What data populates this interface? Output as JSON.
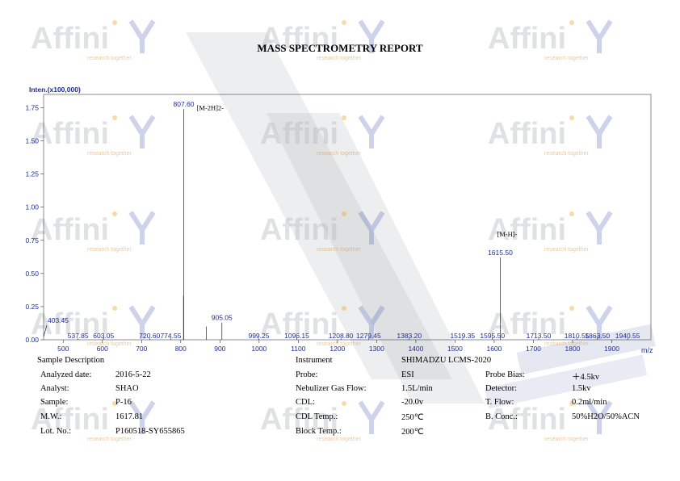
{
  "report_title": "MASS SPECTROMETRY REPORT",
  "watermark": {
    "logo_text": "Affinity",
    "tagline": "research together"
  },
  "chart_data": {
    "type": "bar",
    "ylabel": "Inten.(x100,000)",
    "xlabel": "m/z",
    "xlim": [
      450,
      2000
    ],
    "ylim": [
      0,
      1.85
    ],
    "x_ticks": [
      500,
      600,
      700,
      800,
      900,
      1000,
      1100,
      1200,
      1300,
      1400,
      1500,
      1600,
      1700,
      1800,
      1900
    ],
    "y_ticks": [
      0.0,
      0.25,
      0.5,
      0.75,
      1.0,
      1.25,
      1.5,
      1.75
    ],
    "x_tick_labels": [
      "500",
      "600",
      "700",
      "800",
      "900",
      "1000",
      "1100",
      "1200",
      "1300",
      "1400",
      "1500",
      "1600",
      "1700",
      "1800",
      "1900"
    ],
    "y_tick_labels": [
      "0.00",
      "0.25",
      "0.50",
      "0.75",
      "1.00",
      "1.25",
      "1.50",
      "1.75"
    ],
    "grid": false,
    "peaks": [
      {
        "mz": 403.45,
        "intensity": 0.12,
        "label": "403.45"
      },
      {
        "mz": 537.85,
        "intensity": 0.01,
        "label": "537.85"
      },
      {
        "mz": 603.05,
        "intensity": 0.02,
        "label": "603.05"
      },
      {
        "mz": 720.6,
        "intensity": 0.01,
        "label": "720.60"
      },
      {
        "mz": 774.55,
        "intensity": 0.01,
        "label": "774.55"
      },
      {
        "mz": 807.6,
        "intensity": 1.74,
        "label": "807.60"
      },
      {
        "mz": 807.0,
        "intensity": 0.33,
        "label": ""
      },
      {
        "mz": 865.0,
        "intensity": 0.1,
        "label": ""
      },
      {
        "mz": 905.05,
        "intensity": 0.13,
        "label": "905.05"
      },
      {
        "mz": 999.25,
        "intensity": 0.01,
        "label": "999.25"
      },
      {
        "mz": 1096.15,
        "intensity": 0.02,
        "label": "1096.15"
      },
      {
        "mz": 1208.8,
        "intensity": 0.01,
        "label": "1208.80"
      },
      {
        "mz": 1279.45,
        "intensity": 0.01,
        "label": "1279.45"
      },
      {
        "mz": 1383.2,
        "intensity": 0.01,
        "label": "1383.20"
      },
      {
        "mz": 1519.35,
        "intensity": 0.01,
        "label": "1519.35"
      },
      {
        "mz": 1595.5,
        "intensity": 0.02,
        "label": "1595.50"
      },
      {
        "mz": 1615.5,
        "intensity": 0.62,
        "label": "1615.50"
      },
      {
        "mz": 1713.5,
        "intensity": 0.01,
        "label": "1713.50"
      },
      {
        "mz": 1810.55,
        "intensity": 0.01,
        "label": "1810.55"
      },
      {
        "mz": 1863.5,
        "intensity": 0.01,
        "label": "1863.50"
      },
      {
        "mz": 1940.55,
        "intensity": 0.01,
        "label": "1940.55"
      }
    ],
    "annotations": [
      {
        "text": "[M-2H]2-",
        "mz": 807.6,
        "intensity": 1.73
      },
      {
        "text": "[M-H]-",
        "mz": 1615.5,
        "intensity": 0.78
      }
    ]
  },
  "sample_info": [
    {
      "label": "Sample Description",
      "value": ""
    },
    {
      "label": "Analyzed date:",
      "value": "2016-5-22"
    },
    {
      "label": "Analyst:",
      "value": "SHAO"
    },
    {
      "label": "Sample:",
      "value": "P-16"
    },
    {
      "label": "M.W.:",
      "value": "1617.81"
    },
    {
      "label": "Lot. No.:",
      "value": "P160518-SY655865"
    }
  ],
  "instrument_info": [
    {
      "label": "Instrument",
      "value": "SHIMADZU LCMS-2020"
    },
    {
      "label": "Probe:",
      "value": "ESI"
    },
    {
      "label": "Nebulizer Gas Flow:",
      "value": "1.5L/min"
    },
    {
      "label": "CDL:",
      "value": "-20.0v"
    },
    {
      "label": "CDL Temp.:",
      "value": "250℃"
    },
    {
      "label": "Block Temp.:",
      "value": "200℃"
    }
  ],
  "extra_info": [
    {
      "label": "Probe Bias:",
      "value": "＋4.5kv"
    },
    {
      "label": "Detector:",
      "value": "1.5kv"
    },
    {
      "label": "T. Flow:",
      "value": "0.2ml/min"
    },
    {
      "label": "B. Conc.:",
      "value": "50%H2O/50%ACN"
    }
  ]
}
